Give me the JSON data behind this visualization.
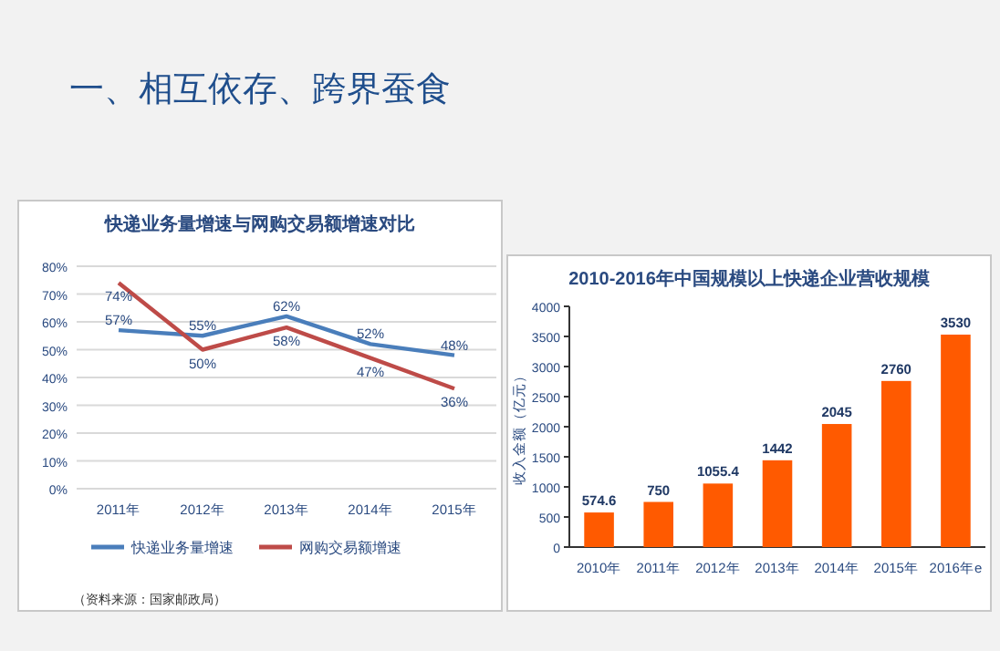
{
  "chart_data": [
    {
      "type": "line",
      "title": "快递业务量增速与网购交易额增速对比",
      "categories": [
        "2011年",
        "2012年",
        "2013年",
        "2014年",
        "2015年"
      ],
      "series": [
        {
          "name": "快递业务量增速",
          "color": "#4a7ebb",
          "values": [
            57,
            55,
            62,
            52,
            48
          ],
          "value_labels": [
            "57%",
            "55%",
            "62%",
            "52%",
            "48%"
          ]
        },
        {
          "name": "网购交易额增速",
          "color": "#be4b48",
          "values": [
            74,
            50,
            58,
            47,
            36
          ],
          "value_labels": [
            "74%",
            "50%",
            "58%",
            "47%",
            "36%"
          ]
        }
      ],
      "ylim": [
        0,
        80
      ],
      "yticks": [
        {
          "value": 0,
          "label": "0%"
        },
        {
          "value": 10,
          "label": "10%"
        },
        {
          "value": 20,
          "label": "20%"
        },
        {
          "value": 30,
          "label": "30%"
        },
        {
          "value": 40,
          "label": "40%"
        },
        {
          "value": 50,
          "label": "50%"
        },
        {
          "value": 60,
          "label": "60%"
        },
        {
          "value": 70,
          "label": "70%"
        },
        {
          "value": 80,
          "label": "80%"
        }
      ],
      "grid": "y",
      "legend": "bottom",
      "marker": "none",
      "line_style": "solid",
      "annotations": [
        "一、相互依存、跨界蚕食",
        "（资料来源：国家邮政局）"
      ]
    },
    {
      "type": "bar",
      "title": "2010-2016年中国规模以上快递企业营收规模",
      "ylabel": "收入金额（亿元）",
      "categories": [
        "2010年",
        "2011年",
        "2012年",
        "2013年",
        "2014年",
        "2015年",
        "2016年e"
      ],
      "values": [
        574.6,
        750,
        1055.4,
        1442,
        2045,
        2760,
        3530
      ],
      "color": "#ff5a00",
      "ylim": [
        0,
        4000
      ],
      "yticks": [
        0,
        500,
        1000,
        1500,
        2000,
        2500,
        3000,
        3500,
        4000
      ],
      "data_labels": true
    }
  ]
}
